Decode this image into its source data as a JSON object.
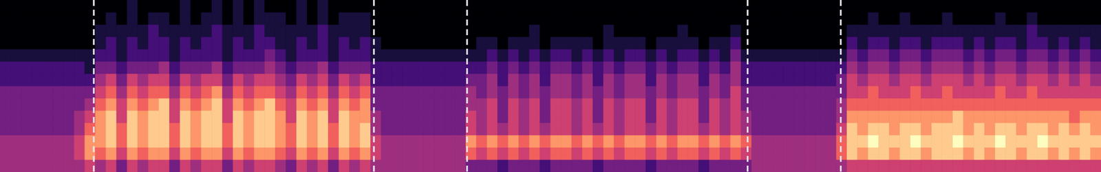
{
  "chart_data": {
    "type": "heatmap",
    "tick_labels": false,
    "xlim": [
      0,
      104
    ],
    "ylim": [
      0,
      14
    ],
    "value_range": [
      0,
      9
    ],
    "boundaries": [
      8.84,
      35.3,
      44.1,
      70.6,
      79.4
    ],
    "cells": [
      [
        4,
        4,
        4,
        3,
        3,
        3,
        3,
        2,
        2,
        1,
        0,
        0,
        0,
        0
      ],
      [
        4,
        4,
        4,
        3,
        3,
        3,
        3,
        2,
        2,
        1,
        0,
        0,
        0,
        0
      ],
      [
        4,
        4,
        4,
        3,
        3,
        3,
        3,
        2,
        2,
        1,
        0,
        0,
        0,
        0
      ],
      [
        4,
        4,
        4,
        3,
        3,
        3,
        3,
        2,
        2,
        1,
        0,
        0,
        0,
        0
      ],
      [
        4,
        4,
        4,
        3,
        3,
        3,
        3,
        2,
        2,
        1,
        0,
        0,
        0,
        0
      ],
      [
        4,
        4,
        4,
        3,
        3,
        3,
        3,
        2,
        2,
        1,
        0,
        0,
        0,
        0
      ],
      [
        4,
        4,
        4,
        3,
        3,
        3,
        3,
        2,
        2,
        1,
        0,
        0,
        0,
        0
      ],
      [
        4,
        5,
        5,
        4,
        4,
        3,
        3,
        2,
        2,
        1,
        0,
        0,
        0,
        0
      ],
      [
        5,
        7,
        7,
        6,
        5,
        4,
        3,
        2,
        1,
        1,
        0,
        0,
        0,
        0
      ],
      [
        4,
        6,
        7,
        7,
        7,
        6,
        5,
        4,
        3,
        2,
        1,
        1,
        0,
        0
      ],
      [
        5,
        7,
        8,
        8,
        8,
        7,
        6,
        5,
        3,
        2,
        2,
        1,
        1,
        0
      ],
      [
        3,
        5,
        6,
        6,
        5,
        5,
        4,
        3,
        2,
        1,
        1,
        1,
        0,
        0
      ],
      [
        5,
        7,
        8,
        8,
        8,
        7,
        6,
        5,
        3,
        2,
        2,
        1,
        1,
        1
      ],
      [
        4,
        6,
        7,
        7,
        7,
        6,
        5,
        4,
        3,
        2,
        1,
        1,
        0,
        0
      ],
      [
        5,
        7,
        8,
        8,
        8,
        7,
        6,
        5,
        3,
        2,
        2,
        2,
        1,
        0
      ],
      [
        5,
        7,
        8,
        8,
        8,
        8,
        6,
        5,
        4,
        2,
        2,
        1,
        1,
        0
      ],
      [
        3,
        5,
        6,
        6,
        5,
        5,
        4,
        3,
        2,
        1,
        1,
        1,
        0,
        0
      ],
      [
        5,
        7,
        8,
        8,
        8,
        7,
        6,
        5,
        3,
        2,
        2,
        1,
        1,
        1
      ],
      [
        4,
        6,
        7,
        7,
        7,
        6,
        5,
        4,
        3,
        2,
        1,
        1,
        0,
        0
      ],
      [
        5,
        7,
        8,
        8,
        8,
        7,
        6,
        5,
        3,
        2,
        2,
        1,
        1,
        0
      ],
      [
        5,
        7,
        8,
        8,
        8,
        8,
        7,
        5,
        4,
        2,
        2,
        2,
        1,
        1
      ],
      [
        3,
        5,
        6,
        6,
        5,
        5,
        4,
        3,
        2,
        1,
        1,
        1,
        0,
        0
      ],
      [
        5,
        7,
        8,
        8,
        8,
        7,
        6,
        5,
        3,
        2,
        2,
        1,
        1,
        1
      ],
      [
        4,
        6,
        7,
        7,
        7,
        6,
        5,
        4,
        3,
        2,
        1,
        1,
        0,
        0
      ],
      [
        5,
        7,
        8,
        8,
        8,
        7,
        6,
        5,
        3,
        2,
        2,
        2,
        1,
        1
      ],
      [
        5,
        7,
        8,
        8,
        8,
        8,
        6,
        5,
        4,
        3,
        2,
        1,
        1,
        0
      ],
      [
        4,
        6,
        7,
        7,
        7,
        6,
        5,
        4,
        3,
        2,
        1,
        1,
        1,
        0
      ],
      [
        3,
        5,
        6,
        6,
        5,
        5,
        4,
        3,
        2,
        1,
        1,
        1,
        0,
        0
      ],
      [
        5,
        7,
        8,
        8,
        8,
        7,
        6,
        5,
        3,
        2,
        2,
        1,
        1,
        1
      ],
      [
        4,
        6,
        7,
        7,
        7,
        6,
        5,
        4,
        3,
        2,
        1,
        1,
        0,
        0
      ],
      [
        5,
        7,
        8,
        8,
        8,
        7,
        6,
        5,
        4,
        2,
        2,
        2,
        1,
        1
      ],
      [
        3,
        5,
        6,
        6,
        5,
        5,
        4,
        3,
        2,
        1,
        1,
        1,
        0,
        0
      ],
      [
        5,
        7,
        8,
        8,
        8,
        7,
        6,
        5,
        3,
        2,
        2,
        1,
        1,
        0
      ],
      [
        4,
        6,
        7,
        7,
        7,
        6,
        5,
        4,
        3,
        2,
        1,
        1,
        1,
        0
      ],
      [
        5,
        7,
        8,
        8,
        7,
        7,
        6,
        5,
        3,
        2,
        2,
        1,
        1,
        0
      ],
      [
        4,
        5,
        5,
        4,
        4,
        3,
        3,
        2,
        2,
        1,
        1,
        0,
        0,
        0
      ],
      [
        4,
        4,
        4,
        3,
        3,
        3,
        3,
        2,
        2,
        1,
        0,
        0,
        0,
        0
      ],
      [
        4,
        4,
        4,
        3,
        3,
        3,
        3,
        2,
        2,
        1,
        0,
        0,
        0,
        0
      ],
      [
        4,
        4,
        4,
        3,
        3,
        3,
        3,
        2,
        2,
        1,
        0,
        0,
        0,
        0
      ],
      [
        4,
        4,
        4,
        3,
        3,
        3,
        3,
        2,
        2,
        1,
        0,
        0,
        0,
        0
      ],
      [
        4,
        4,
        4,
        3,
        3,
        3,
        3,
        2,
        2,
        1,
        0,
        0,
        0,
        0
      ],
      [
        4,
        4,
        4,
        3,
        3,
        3,
        3,
        2,
        2,
        1,
        0,
        0,
        0,
        0
      ],
      [
        4,
        4,
        4,
        3,
        3,
        3,
        3,
        2,
        2,
        1,
        0,
        0,
        0,
        0
      ],
      [
        4,
        4,
        4,
        3,
        3,
        3,
        3,
        2,
        2,
        1,
        0,
        0,
        0,
        0
      ],
      [
        3,
        6,
        7,
        5,
        5,
        4,
        4,
        3,
        2,
        1,
        0,
        0,
        0,
        0
      ],
      [
        3,
        5,
        6,
        4,
        4,
        4,
        3,
        3,
        2,
        1,
        1,
        0,
        0,
        0
      ],
      [
        3,
        6,
        7,
        5,
        5,
        5,
        4,
        4,
        3,
        2,
        1,
        0,
        0,
        0
      ],
      [
        2,
        5,
        6,
        4,
        3,
        3,
        3,
        2,
        2,
        1,
        0,
        0,
        0,
        0
      ],
      [
        3,
        6,
        7,
        5,
        5,
        5,
        4,
        4,
        3,
        2,
        1,
        0,
        0,
        0
      ],
      [
        3,
        5,
        6,
        4,
        4,
        4,
        3,
        3,
        2,
        1,
        1,
        0,
        0,
        0
      ],
      [
        3,
        6,
        7,
        5,
        5,
        5,
        4,
        4,
        3,
        2,
        1,
        1,
        0,
        0
      ],
      [
        2,
        5,
        6,
        4,
        3,
        3,
        3,
        2,
        2,
        1,
        0,
        0,
        0,
        0
      ],
      [
        3,
        6,
        7,
        5,
        5,
        5,
        4,
        4,
        3,
        2,
        1,
        0,
        0,
        0
      ],
      [
        3,
        6,
        7,
        5,
        5,
        5,
        4,
        4,
        3,
        2,
        1,
        0,
        0,
        0
      ],
      [
        3,
        5,
        6,
        4,
        4,
        4,
        3,
        3,
        2,
        1,
        1,
        0,
        0,
        0
      ],
      [
        3,
        6,
        7,
        5,
        5,
        5,
        4,
        4,
        3,
        2,
        1,
        0,
        0,
        0
      ],
      [
        2,
        5,
        6,
        4,
        3,
        3,
        3,
        2,
        2,
        1,
        0,
        0,
        0,
        0
      ],
      [
        3,
        6,
        7,
        5,
        5,
        5,
        4,
        4,
        3,
        2,
        1,
        1,
        0,
        0
      ],
      [
        3,
        5,
        6,
        4,
        4,
        4,
        3,
        3,
        2,
        1,
        1,
        0,
        0,
        0
      ],
      [
        3,
        6,
        7,
        5,
        5,
        5,
        4,
        4,
        3,
        2,
        1,
        0,
        0,
        0
      ],
      [
        3,
        6,
        7,
        5,
        5,
        5,
        4,
        4,
        3,
        2,
        1,
        0,
        0,
        0
      ],
      [
        2,
        5,
        6,
        4,
        3,
        3,
        3,
        2,
        2,
        1,
        0,
        0,
        0,
        0
      ],
      [
        3,
        6,
        7,
        5,
        5,
        5,
        4,
        4,
        3,
        2,
        1,
        0,
        0,
        0
      ],
      [
        3,
        5,
        6,
        4,
        4,
        4,
        3,
        3,
        2,
        1,
        1,
        0,
        0,
        0
      ],
      [
        3,
        6,
        7,
        5,
        5,
        5,
        4,
        4,
        3,
        2,
        1,
        1,
        0,
        0
      ],
      [
        3,
        6,
        7,
        5,
        5,
        5,
        4,
        4,
        3,
        2,
        1,
        0,
        0,
        0
      ],
      [
        2,
        5,
        6,
        4,
        3,
        3,
        3,
        2,
        2,
        1,
        0,
        0,
        0,
        0
      ],
      [
        3,
        6,
        7,
        5,
        5,
        5,
        4,
        4,
        3,
        2,
        1,
        0,
        0,
        0
      ],
      [
        3,
        5,
        6,
        4,
        4,
        4,
        3,
        3,
        2,
        1,
        1,
        0,
        0,
        0
      ],
      [
        3,
        6,
        7,
        5,
        5,
        5,
        5,
        4,
        4,
        3,
        2,
        1,
        0,
        0
      ],
      [
        3,
        5,
        6,
        4,
        4,
        3,
        3,
        2,
        2,
        1,
        0,
        0,
        0,
        0
      ],
      [
        4,
        4,
        4,
        3,
        3,
        3,
        3,
        2,
        2,
        1,
        0,
        0,
        0,
        0
      ],
      [
        4,
        4,
        4,
        3,
        3,
        3,
        3,
        2,
        2,
        1,
        0,
        0,
        0,
        0
      ],
      [
        4,
        4,
        4,
        3,
        3,
        3,
        3,
        2,
        2,
        1,
        0,
        0,
        0,
        0
      ],
      [
        4,
        4,
        4,
        3,
        3,
        3,
        3,
        2,
        2,
        1,
        0,
        0,
        0,
        0
      ],
      [
        4,
        4,
        4,
        3,
        3,
        3,
        3,
        2,
        2,
        1,
        0,
        0,
        0,
        0
      ],
      [
        4,
        4,
        4,
        3,
        3,
        3,
        3,
        2,
        2,
        1,
        0,
        0,
        0,
        0
      ],
      [
        4,
        4,
        4,
        3,
        3,
        3,
        3,
        2,
        2,
        1,
        0,
        0,
        0,
        0
      ],
      [
        4,
        4,
        4,
        3,
        3,
        3,
        3,
        2,
        2,
        1,
        0,
        0,
        0,
        0
      ],
      [
        4,
        6,
        6,
        5,
        4,
        4,
        3,
        3,
        2,
        1,
        0,
        0,
        0,
        0
      ],
      [
        5,
        8,
        8,
        8,
        7,
        6,
        5,
        5,
        4,
        3,
        2,
        1,
        0,
        0
      ],
      [
        5,
        7,
        8,
        7,
        7,
        6,
        5,
        4,
        3,
        2,
        1,
        1,
        0,
        0
      ],
      [
        5,
        8,
        9,
        8,
        7,
        6,
        6,
        5,
        4,
        3,
        2,
        1,
        1,
        0
      ],
      [
        5,
        8,
        8,
        8,
        7,
        6,
        5,
        5,
        4,
        3,
        2,
        1,
        0,
        0
      ],
      [
        5,
        7,
        8,
        7,
        7,
        6,
        5,
        4,
        3,
        2,
        1,
        1,
        0,
        0
      ],
      [
        5,
        8,
        8,
        8,
        7,
        6,
        5,
        5,
        4,
        3,
        2,
        1,
        1,
        0
      ],
      [
        5,
        8,
        9,
        8,
        7,
        6,
        6,
        5,
        4,
        3,
        2,
        1,
        0,
        0
      ],
      [
        5,
        7,
        8,
        7,
        7,
        6,
        5,
        4,
        3,
        2,
        1,
        1,
        0,
        0
      ],
      [
        5,
        8,
        8,
        8,
        7,
        6,
        5,
        5,
        4,
        3,
        2,
        1,
        0,
        0
      ],
      [
        5,
        8,
        8,
        8,
        7,
        6,
        6,
        5,
        4,
        3,
        2,
        1,
        1,
        0
      ],
      [
        5,
        8,
        9,
        8,
        8,
        6,
        5,
        5,
        4,
        3,
        2,
        1,
        0,
        0
      ],
      [
        5,
        7,
        8,
        7,
        7,
        6,
        5,
        4,
        3,
        2,
        1,
        1,
        0,
        0
      ],
      [
        5,
        8,
        8,
        8,
        7,
        6,
        5,
        5,
        4,
        3,
        2,
        1,
        0,
        0
      ],
      [
        5,
        7,
        8,
        7,
        7,
        6,
        5,
        4,
        3,
        2,
        1,
        1,
        0,
        0
      ],
      [
        5,
        8,
        9,
        8,
        7,
        6,
        6,
        5,
        4,
        3,
        2,
        1,
        1,
        0
      ],
      [
        5,
        8,
        8,
        8,
        7,
        6,
        5,
        5,
        4,
        3,
        2,
        1,
        0,
        0
      ],
      [
        5,
        7,
        8,
        7,
        7,
        6,
        5,
        4,
        3,
        2,
        1,
        1,
        0,
        0
      ],
      [
        5,
        8,
        8,
        8,
        7,
        6,
        6,
        5,
        4,
        3,
        2,
        2,
        1,
        0
      ],
      [
        5,
        8,
        9,
        8,
        7,
        6,
        5,
        5,
        4,
        3,
        2,
        1,
        0,
        0
      ],
      [
        5,
        7,
        8,
        7,
        7,
        6,
        5,
        4,
        3,
        2,
        1,
        1,
        0,
        0
      ],
      [
        5,
        8,
        8,
        8,
        7,
        6,
        5,
        5,
        4,
        3,
        2,
        1,
        0,
        0
      ],
      [
        5,
        7,
        8,
        7,
        6,
        6,
        5,
        4,
        3,
        2,
        1,
        1,
        0,
        0
      ],
      [
        5,
        8,
        8,
        8,
        7,
        6,
        5,
        5,
        4,
        3,
        2,
        1,
        0,
        0
      ],
      [
        5,
        7,
        8,
        7,
        7,
        6,
        5,
        4,
        3,
        2,
        1,
        1,
        0,
        0
      ]
    ]
  }
}
